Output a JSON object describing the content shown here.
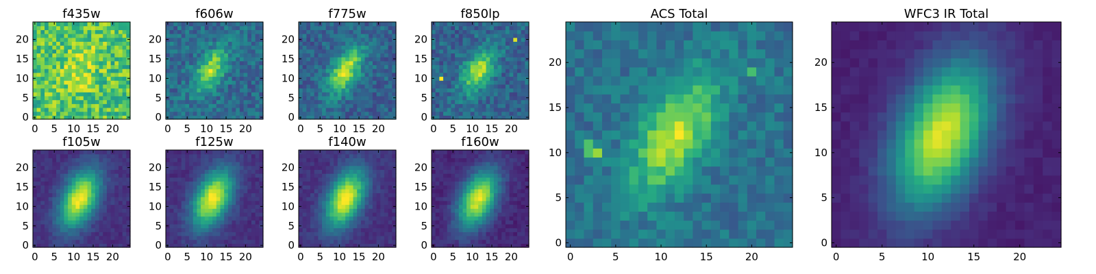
{
  "chart_data": [
    {
      "type": "heatmap",
      "title": "f435w",
      "xlim": [
        0,
        24
      ],
      "ylim": [
        0,
        24
      ],
      "xticks": [
        0,
        5,
        10,
        15,
        20
      ],
      "yticks": [
        0,
        5,
        10,
        15,
        20
      ],
      "colormap": "viridis",
      "grid": false,
      "profile": {
        "center": [
          11.5,
          12
        ],
        "sigma_x": 3.0,
        "sigma_y": 5.0,
        "rotation_deg": 30,
        "peak": 0.2,
        "background": 0.72,
        "noise": 0.2
      }
    },
    {
      "type": "heatmap",
      "title": "f606w",
      "xlim": [
        0,
        24
      ],
      "ylim": [
        0,
        24
      ],
      "xticks": [
        0,
        5,
        10,
        15,
        20
      ],
      "yticks": [
        0,
        5,
        10,
        15,
        20
      ],
      "colormap": "viridis",
      "grid": false,
      "profile": {
        "center": [
          11,
          12
        ],
        "sigma_x": 2.2,
        "sigma_y": 4.5,
        "rotation_deg": 30,
        "peak": 0.55,
        "background": 0.35,
        "noise": 0.13
      }
    },
    {
      "type": "heatmap",
      "title": "f775w",
      "xlim": [
        0,
        24
      ],
      "ylim": [
        0,
        24
      ],
      "xticks": [
        0,
        5,
        10,
        15,
        20
      ],
      "yticks": [
        0,
        5,
        10,
        15,
        20
      ],
      "colormap": "viridis",
      "grid": false,
      "profile": {
        "center": [
          11.5,
          12
        ],
        "sigma_x": 2.3,
        "sigma_y": 4.8,
        "rotation_deg": 30,
        "peak": 0.6,
        "background": 0.32,
        "noise": 0.12
      }
    },
    {
      "type": "heatmap",
      "title": "f850lp",
      "xlim": [
        0,
        24
      ],
      "ylim": [
        0,
        24
      ],
      "xticks": [
        0,
        5,
        10,
        15,
        20
      ],
      "yticks": [
        0,
        5,
        10,
        15,
        20
      ],
      "colormap": "viridis",
      "grid": false,
      "profile": {
        "center": [
          11.5,
          12
        ],
        "sigma_x": 2.3,
        "sigma_y": 4.5,
        "rotation_deg": 30,
        "peak": 0.55,
        "background": 0.33,
        "noise": 0.13
      },
      "hot_pixels": [
        {
          "x": 2,
          "y": 10,
          "value": 1.0
        },
        {
          "x": 21,
          "y": 20,
          "value": 0.95
        }
      ]
    },
    {
      "type": "heatmap",
      "title": "f105w",
      "xlim": [
        0,
        24
      ],
      "ylim": [
        0,
        24
      ],
      "xticks": [
        0,
        5,
        10,
        15,
        20
      ],
      "yticks": [
        0,
        5,
        10,
        15,
        20
      ],
      "colormap": "viridis",
      "grid": false,
      "profile": {
        "center": [
          11.5,
          12
        ],
        "sigma_x": 3.0,
        "sigma_y": 5.5,
        "rotation_deg": 25,
        "peak": 0.85,
        "background": 0.15,
        "noise": 0.05
      }
    },
    {
      "type": "heatmap",
      "title": "f125w",
      "xlim": [
        0,
        24
      ],
      "ylim": [
        0,
        24
      ],
      "xticks": [
        0,
        5,
        10,
        15,
        20
      ],
      "yticks": [
        0,
        5,
        10,
        15,
        20
      ],
      "colormap": "viridis",
      "grid": false,
      "profile": {
        "center": [
          11.5,
          12
        ],
        "sigma_x": 3.0,
        "sigma_y": 5.5,
        "rotation_deg": 25,
        "peak": 0.85,
        "background": 0.15,
        "noise": 0.05
      }
    },
    {
      "type": "heatmap",
      "title": "f140w",
      "xlim": [
        0,
        24
      ],
      "ylim": [
        0,
        24
      ],
      "xticks": [
        0,
        5,
        10,
        15,
        20
      ],
      "yticks": [
        0,
        5,
        10,
        15,
        20
      ],
      "colormap": "viridis",
      "grid": false,
      "profile": {
        "center": [
          11.5,
          12
        ],
        "sigma_x": 3.0,
        "sigma_y": 5.5,
        "rotation_deg": 25,
        "peak": 0.85,
        "background": 0.15,
        "noise": 0.05
      }
    },
    {
      "type": "heatmap",
      "title": "f160w",
      "xlim": [
        0,
        24
      ],
      "ylim": [
        0,
        24
      ],
      "xticks": [
        0,
        5,
        10,
        15,
        20
      ],
      "yticks": [
        0,
        5,
        10,
        15,
        20
      ],
      "colormap": "viridis",
      "grid": false,
      "profile": {
        "center": [
          11.5,
          12
        ],
        "sigma_x": 3.0,
        "sigma_y": 5.5,
        "rotation_deg": 25,
        "peak": 0.85,
        "background": 0.12,
        "noise": 0.05
      }
    },
    {
      "type": "heatmap",
      "title": "ACS Total",
      "xlim": [
        0,
        24
      ],
      "ylim": [
        0,
        24
      ],
      "xticks": [
        0,
        5,
        10,
        15,
        20
      ],
      "yticks": [
        0,
        5,
        10,
        15,
        20
      ],
      "colormap": "viridis",
      "grid": false,
      "profile": {
        "center": [
          11.5,
          12
        ],
        "sigma_x": 2.4,
        "sigma_y": 5.0,
        "rotation_deg": 30,
        "peak": 0.55,
        "background": 0.38,
        "noise": 0.1
      },
      "hot_pixels": [
        {
          "x": 2,
          "y": 10,
          "value": 0.72
        },
        {
          "x": 3,
          "y": 10,
          "value": 0.85
        },
        {
          "x": 2,
          "y": 11,
          "value": 0.72
        },
        {
          "x": 20,
          "y": 19,
          "value": 0.7
        }
      ]
    },
    {
      "type": "heatmap",
      "title": "WFC3 IR Total",
      "xlim": [
        0,
        24
      ],
      "ylim": [
        0,
        24
      ],
      "xticks": [
        0,
        5,
        10,
        15,
        20
      ],
      "yticks": [
        0,
        5,
        10,
        15,
        20
      ],
      "colormap": "viridis",
      "grid": false,
      "profile": {
        "center": [
          11.5,
          12
        ],
        "sigma_x": 3.2,
        "sigma_y": 6.0,
        "rotation_deg": 22,
        "peak": 0.85,
        "background": 0.1,
        "noise": 0.03
      }
    }
  ]
}
